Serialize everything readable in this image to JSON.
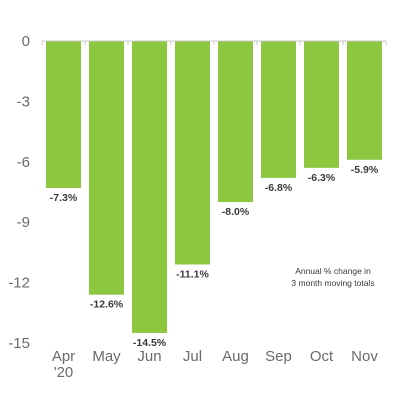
{
  "chart_data": {
    "type": "bar",
    "categories": [
      "Apr\n'20",
      "May",
      "Jun",
      "Jul",
      "Aug",
      "Sep",
      "Oct",
      "Nov"
    ],
    "values": [
      -7.3,
      -12.6,
      -14.5,
      -11.1,
      -8.0,
      -6.8,
      -6.3,
      -5.9
    ],
    "value_labels": [
      "-7.3%",
      "-12.6%",
      "-14.5%",
      "-11.1%",
      "-8.0%",
      "-6.8%",
      "-6.3%",
      "-5.9%"
    ],
    "yticks": [
      0,
      -3,
      -6,
      -9,
      -12,
      -15
    ],
    "ylim": [
      -15,
      0
    ],
    "bar_color": "#8dc63f",
    "gridline_color": "#c8c8c8",
    "annotation": [
      "Annual % change in",
      "3 month moving totals"
    ],
    "title": "",
    "xlabel": "",
    "ylabel": "",
    "grid": false,
    "legend": "none"
  }
}
